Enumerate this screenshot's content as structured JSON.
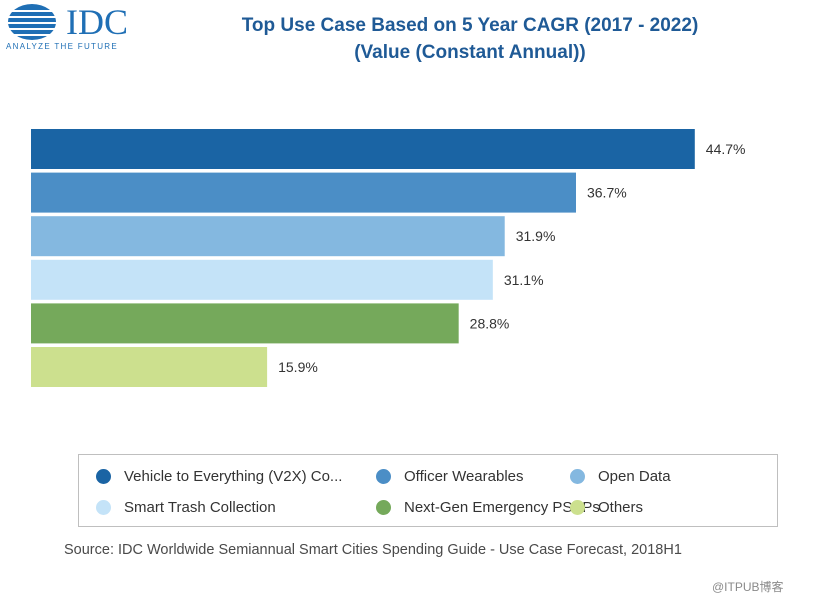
{
  "logo": {
    "text": "IDC",
    "tagline": "ANALYZE THE FUTURE"
  },
  "title": {
    "line1": "Top Use Case Based on 5 Year CAGR  (2017 - 2022)",
    "line2": "(Value (Constant Annual))"
  },
  "chart_data": {
    "type": "bar",
    "orientation": "horizontal",
    "title": "Top Use Case Based on 5 Year CAGR  (2017 - 2022) (Value (Constant Annual))",
    "xlabel": "",
    "ylabel": "",
    "xlim": [
      0,
      50
    ],
    "grid": false,
    "legend_position": "bottom",
    "categories": [
      "Vehicle to Everything (V2X) Co...",
      "Officer Wearables",
      "Open Data",
      "Smart Trash Collection",
      "Next-Gen Emergency PSAPs",
      "Others"
    ],
    "values": [
      44.7,
      36.7,
      31.9,
      31.1,
      28.8,
      15.9
    ],
    "labels": [
      "44.7%",
      "36.7%",
      "31.9%",
      "31.1%",
      "28.8%",
      "15.9%"
    ],
    "colors": [
      "#1a64a4",
      "#4b8ec6",
      "#84b8e0",
      "#c4e3f8",
      "#75a95b",
      "#cce08e"
    ]
  },
  "source": "Source: IDC Worldwide Semiannual Smart Cities Spending Guide - Use Case Forecast, 2018H1",
  "watermark": "@ITPUB博客"
}
